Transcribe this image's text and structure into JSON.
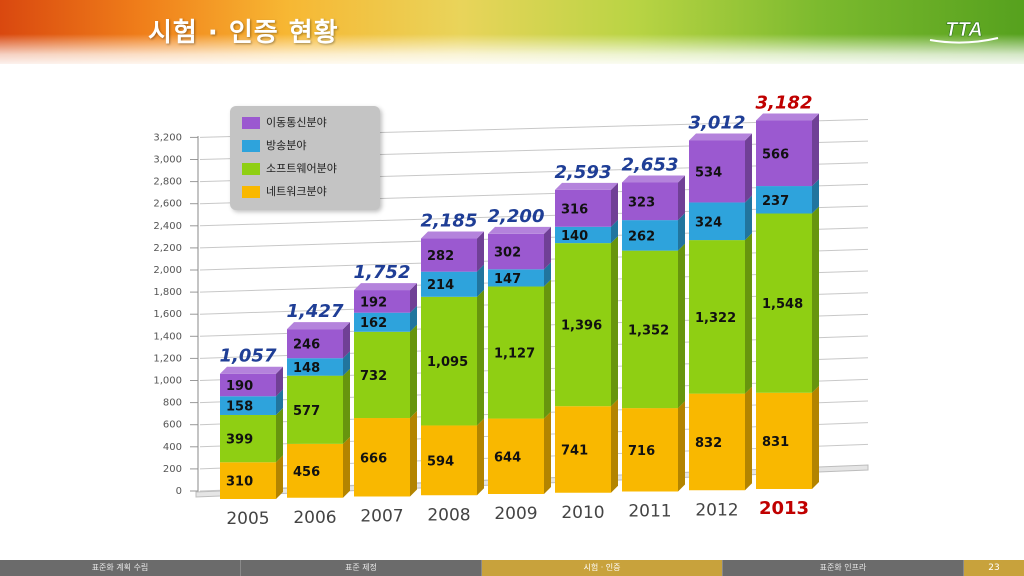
{
  "header": {
    "title": "시험 · 인증 현황",
    "logo_text": "TTA"
  },
  "colors": {
    "mobile": "#9b59d0",
    "broadcast": "#2ea3dc",
    "software": "#8fcf13",
    "network": "#f9b800",
    "total_label": "#1f3e96",
    "highlight": "#c00000"
  },
  "chart_data": {
    "type": "bar",
    "stacked": true,
    "categories": [
      "2005",
      "2006",
      "2007",
      "2008",
      "2009",
      "2010",
      "2011",
      "2012",
      "2013"
    ],
    "highlight_category": "2013",
    "series": [
      {
        "name": "네트워크분야",
        "color": "#f9b800",
        "values": [
          310,
          456,
          666,
          594,
          644,
          741,
          716,
          832,
          831
        ]
      },
      {
        "name": "소프트웨어분야",
        "color": "#8fcf13",
        "values": [
          399,
          577,
          732,
          1095,
          1127,
          1396,
          1352,
          1322,
          1548
        ]
      },
      {
        "name": "방송분야",
        "color": "#2ea3dc",
        "values": [
          158,
          148,
          162,
          214,
          147,
          140,
          262,
          324,
          237
        ]
      },
      {
        "name": "이동통신분야",
        "color": "#9b59d0",
        "values": [
          190,
          246,
          192,
          282,
          302,
          316,
          323,
          534,
          566
        ]
      }
    ],
    "totals": [
      "1,057",
      "1,427",
      "1,752",
      "2,185",
      "2,200",
      "2,593",
      "2,653",
      "3,012",
      "3,182"
    ],
    "value_labels": [
      [
        "310",
        "456",
        "666",
        "594",
        "644",
        "741",
        "716",
        "832",
        "831"
      ],
      [
        "399",
        "577",
        "732",
        "1,095",
        "1,127",
        "1,396",
        "1,352",
        "1,322",
        "1,548"
      ],
      [
        "158",
        "148",
        "162",
        "214",
        "147",
        "140",
        "262",
        "324",
        "237"
      ],
      [
        "190",
        "246",
        "192",
        "282",
        "302",
        "316",
        "323",
        "534",
        "566"
      ]
    ],
    "yticks": [
      "0",
      "200",
      "400",
      "600",
      "800",
      "1,000",
      "1,200",
      "1,400",
      "1,600",
      "1,800",
      "2,000",
      "2,200",
      "2,400",
      "2,600",
      "2,800",
      "3,000",
      "3,200"
    ],
    "ylim": [
      0,
      3200
    ],
    "legend_order": [
      "이동통신분야",
      "방송분야",
      "소프트웨어분야",
      "네트워크분야"
    ],
    "legend_position": "top-left",
    "grid": true
  },
  "footer": {
    "tabs": [
      "표준화 계획 수립",
      "표준 제정",
      "시험 · 인증",
      "표준화 인프라"
    ],
    "active_tab": 2,
    "page_number": "23"
  }
}
